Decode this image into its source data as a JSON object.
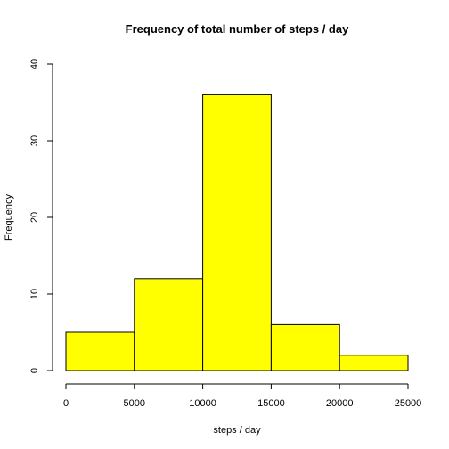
{
  "chart_data": {
    "type": "bar",
    "title": "Frequency of total number of steps / day",
    "xlabel": "steps / day",
    "ylabel": "Frequency",
    "bins": [
      {
        "from": 0,
        "to": 5000,
        "count": 5
      },
      {
        "from": 5000,
        "to": 10000,
        "count": 12
      },
      {
        "from": 10000,
        "to": 15000,
        "count": 36
      },
      {
        "from": 15000,
        "to": 20000,
        "count": 6
      },
      {
        "from": 20000,
        "to": 25000,
        "count": 2
      }
    ],
    "xlim": [
      0,
      25000
    ],
    "ylim": [
      0,
      40
    ],
    "xticks": [
      "0",
      "5000",
      "10000",
      "15000",
      "20000",
      "25000"
    ],
    "yticks": [
      "0",
      "10",
      "20",
      "30",
      "40"
    ],
    "bar_color": "#ffff00",
    "grid": false
  }
}
